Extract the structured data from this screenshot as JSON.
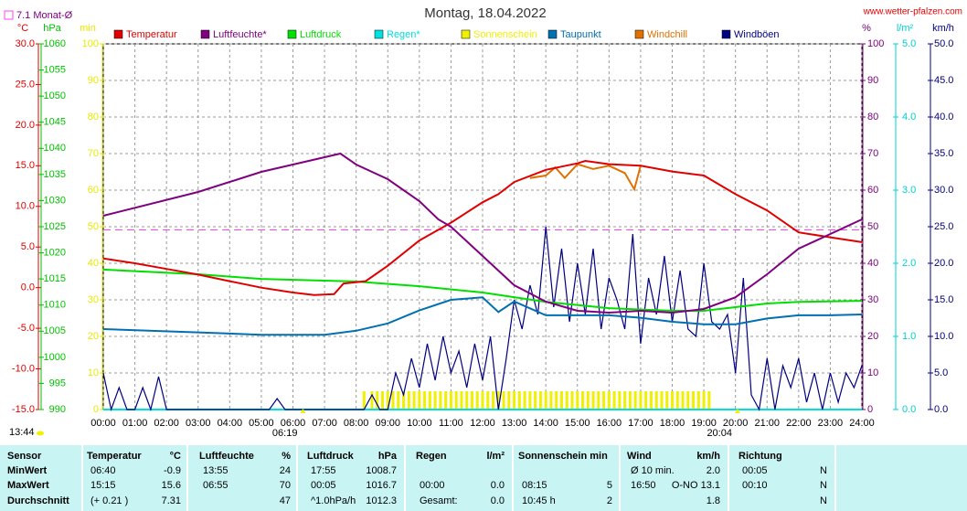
{
  "chart_data": {
    "type": "line",
    "title": "Montag, 18.04.2022",
    "site": "www.wetter-pfalzen.com",
    "updated": "13:44",
    "xlim": [
      0,
      1440
    ],
    "xticks": [
      {
        "value": 0,
        "label": "00:00"
      },
      {
        "value": 60,
        "label": "01:00"
      },
      {
        "value": 120,
        "label": "02:00"
      },
      {
        "value": 180,
        "label": "03:00"
      },
      {
        "value": 240,
        "label": "04:00"
      },
      {
        "value": 300,
        "label": "05:00"
      },
      {
        "value": 360,
        "label": "06:00"
      },
      {
        "value": 420,
        "label": "07:00"
      },
      {
        "value": 480,
        "label": "08:00"
      },
      {
        "value": 540,
        "label": "09:00"
      },
      {
        "value": 600,
        "label": "10:00"
      },
      {
        "value": 660,
        "label": "11:00"
      },
      {
        "value": 720,
        "label": "12:00"
      },
      {
        "value": 780,
        "label": "13:00"
      },
      {
        "value": 840,
        "label": "14:00"
      },
      {
        "value": 900,
        "label": "15:00"
      },
      {
        "value": 960,
        "label": "16:00"
      },
      {
        "value": 1020,
        "label": "17:00"
      },
      {
        "value": 1080,
        "label": "18:00"
      },
      {
        "value": 1140,
        "label": "19:00"
      },
      {
        "value": 1200,
        "label": "20:00"
      },
      {
        "value": 1260,
        "label": "21:00"
      },
      {
        "value": 1320,
        "label": "22:00"
      },
      {
        "value": 1380,
        "label": "23:00"
      },
      {
        "value": 1440,
        "label": "24:00"
      }
    ],
    "grid": true,
    "axes": {
      "temp": {
        "unit": "°C",
        "color": "#e00000",
        "lim": [
          -15,
          30
        ],
        "ticks": [
          {
            "value": -15,
            "label": "-15.0"
          },
          {
            "value": -10,
            "label": "-10.0"
          },
          {
            "value": -5,
            "label": "-5.0"
          },
          {
            "value": 0,
            "label": "0.0"
          },
          {
            "value": 5,
            "label": "5.0"
          },
          {
            "value": 10,
            "label": "10.0"
          },
          {
            "value": 15,
            "label": "15.0"
          },
          {
            "value": 20,
            "label": "20.0"
          },
          {
            "value": 25,
            "label": "25.0"
          },
          {
            "value": 30,
            "label": "30.0"
          }
        ]
      },
      "press": {
        "unit": "hPa",
        "color": "#00c000",
        "lim": [
          990,
          1060
        ],
        "ticks": [
          990,
          995,
          1000,
          1005,
          1010,
          1015,
          1020,
          1025,
          1030,
          1035,
          1040,
          1045,
          1050,
          1055,
          1060
        ]
      },
      "min": {
        "unit": "min",
        "color": "#e8e800",
        "lim": [
          0,
          100
        ],
        "ticks": [
          0,
          10,
          20,
          30,
          40,
          50,
          60,
          70,
          80,
          90,
          100
        ]
      },
      "pct": {
        "unit": "%",
        "color": "#800080",
        "lim": [
          0,
          100
        ],
        "ticks": [
          0,
          10,
          20,
          30,
          40,
          50,
          60,
          70,
          80,
          90,
          100
        ]
      },
      "rain": {
        "unit": "l/m²",
        "color": "#00d0d0",
        "lim": [
          0,
          5
        ],
        "ticks": [
          {
            "value": 0,
            "label": "0.0"
          },
          {
            "value": 1,
            "label": "1.0"
          },
          {
            "value": 2,
            "label": "2.0"
          },
          {
            "value": 3,
            "label": "3.0"
          },
          {
            "value": 4,
            "label": "4.0"
          },
          {
            "value": 5,
            "label": "5.0"
          }
        ]
      },
      "kmh": {
        "unit": "km/h",
        "color": "#000080",
        "lim": [
          0,
          50
        ],
        "ticks": [
          {
            "value": 0,
            "label": "0.0"
          },
          {
            "value": 5,
            "label": "5.0"
          },
          {
            "value": 10,
            "label": "10.0"
          },
          {
            "value": 15,
            "label": "15.0"
          },
          {
            "value": 20,
            "label": "20.0"
          },
          {
            "value": 25,
            "label": "25.0"
          },
          {
            "value": 30,
            "label": "30.0"
          },
          {
            "value": 35,
            "label": "35.0"
          },
          {
            "value": 40,
            "label": "40.0"
          },
          {
            "value": 45,
            "label": "45.0"
          },
          {
            "value": 50,
            "label": "50.0"
          }
        ]
      }
    },
    "average": {
      "label": "7.1 Monat-Ø",
      "value": 7.1,
      "axis": "temp",
      "color": "#ff40ff"
    },
    "markers": [
      {
        "x": 379,
        "label": "06:19"
      },
      {
        "x": 1204,
        "label": "20:04"
      }
    ],
    "series": [
      {
        "name": "Temperatur",
        "color": "#e00000",
        "axis": "temp",
        "style": "line",
        "x": [
          0,
          60,
          120,
          180,
          240,
          300,
          360,
          400,
          438,
          456,
          498,
          540,
          600,
          660,
          720,
          750,
          780,
          840,
          900,
          915,
          960,
          1020,
          1080,
          1140,
          1200,
          1260,
          1320,
          1380,
          1440
        ],
        "values": [
          3.6,
          3.0,
          2.3,
          1.6,
          0.8,
          0.0,
          -0.6,
          -0.9,
          -0.8,
          0.5,
          0.8,
          2.7,
          5.8,
          8.0,
          10.5,
          11.5,
          13.0,
          14.5,
          15.3,
          15.6,
          15.2,
          15.0,
          14.3,
          13.8,
          11.5,
          9.5,
          6.8,
          6.2,
          5.6
        ]
      },
      {
        "name": "Luftfeuchte*",
        "color": "#800080",
        "axis": "pct",
        "style": "line",
        "x": [
          0,
          180,
          300,
          360,
          420,
          450,
          480,
          540,
          600,
          636,
          660,
          720,
          750,
          780,
          840,
          900,
          960,
          1020,
          1080,
          1140,
          1200,
          1260,
          1320,
          1380,
          1440
        ],
        "values": [
          53,
          59.5,
          65,
          67,
          69,
          70,
          67,
          63,
          57,
          52,
          50,
          42,
          38,
          34,
          29.5,
          27,
          26.5,
          27,
          26.5,
          27.5,
          30.7,
          37,
          44,
          48,
          52
        ]
      },
      {
        "name": "Luftdruck",
        "color": "#00e000",
        "axis": "press",
        "style": "line",
        "x": [
          0,
          180,
          300,
          480,
          600,
          720,
          840,
          960,
          1080,
          1140,
          1200,
          1260,
          1320,
          1440
        ],
        "values": [
          1016.8,
          1015.9,
          1015,
          1014.5,
          1013.6,
          1012.4,
          1010.6,
          1009.4,
          1008.9,
          1008.9,
          1009.6,
          1010.3,
          1010.6,
          1010.8
        ]
      },
      {
        "name": "Regen*",
        "color": "#00e0e0",
        "axis": "rain",
        "style": "line",
        "x": [
          0,
          1440
        ],
        "values": [
          0,
          0
        ]
      },
      {
        "name": "Sonnenschein",
        "color": "#f0f000",
        "axis": "min",
        "style": "bar",
        "x": [
          495,
          510,
          520,
          530,
          540,
          550,
          560,
          570,
          580,
          590,
          600,
          610,
          620,
          630,
          640,
          650,
          660,
          670,
          680,
          690,
          700,
          710,
          720,
          730,
          740,
          750,
          760,
          770,
          780,
          790,
          800,
          810,
          820,
          830,
          840,
          850,
          860,
          870,
          880,
          890,
          900,
          910,
          920,
          930,
          940,
          950,
          960,
          970,
          980,
          990,
          1000,
          1010,
          1020,
          1030,
          1040,
          1050,
          1060,
          1070,
          1080,
          1090,
          1100,
          1110,
          1120,
          1130,
          1140,
          1150
        ],
        "values": [
          5,
          5,
          5,
          5,
          5,
          5,
          5,
          5,
          5,
          5,
          5,
          5,
          5,
          5,
          5,
          5,
          5,
          5,
          5,
          5,
          5,
          5,
          5,
          5,
          5,
          5,
          5,
          5,
          5,
          5,
          5,
          5,
          5,
          5,
          5,
          5,
          5,
          5,
          5,
          5,
          5,
          5,
          5,
          5,
          5,
          5,
          5,
          5,
          5,
          5,
          5,
          5,
          5,
          5,
          5,
          5,
          5,
          5,
          5,
          5,
          5,
          5,
          5,
          5,
          5,
          5
        ]
      },
      {
        "name": "Taupunkt",
        "color": "#0070b0",
        "axis": "temp",
        "style": "line",
        "x": [
          0,
          180,
          300,
          420,
          480,
          540,
          600,
          660,
          720,
          750,
          780,
          840,
          900,
          960,
          1020,
          1080,
          1140,
          1200,
          1260,
          1320,
          1380,
          1440
        ],
        "values": [
          -5.1,
          -5.5,
          -5.8,
          -5.8,
          -5.3,
          -4.4,
          -2.8,
          -1.5,
          -1.2,
          -3.0,
          -1.7,
          -3.4,
          -3.4,
          -3.4,
          -3.7,
          -4.2,
          -4.5,
          -4.5,
          -3.8,
          -3.4,
          -3.4,
          -3.3
        ]
      },
      {
        "name": "Windchill",
        "color": "#e07000",
        "axis": "temp",
        "style": "line",
        "x": [
          810,
          840,
          858,
          876,
          900,
          930,
          960,
          990,
          1008,
          1020
        ],
        "values": [
          13.5,
          13.8,
          14.8,
          13.5,
          15.2,
          14.6,
          15.0,
          14.1,
          12.1,
          15.0
        ]
      },
      {
        "name": "Windböen",
        "color": "#000080",
        "axis": "kmh",
        "style": "line",
        "x": [
          0,
          15,
          30,
          45,
          60,
          75,
          90,
          105,
          120,
          135,
          150,
          165,
          180,
          195,
          210,
          225,
          240,
          255,
          270,
          285,
          300,
          315,
          330,
          345,
          360,
          375,
          390,
          405,
          420,
          435,
          450,
          465,
          480,
          495,
          510,
          525,
          540,
          555,
          570,
          585,
          600,
          615,
          630,
          645,
          660,
          675,
          690,
          705,
          720,
          735,
          750,
          765,
          780,
          795,
          810,
          825,
          840,
          855,
          870,
          885,
          900,
          915,
          930,
          945,
          960,
          975,
          990,
          1005,
          1020,
          1035,
          1050,
          1065,
          1080,
          1095,
          1110,
          1125,
          1140,
          1155,
          1170,
          1185,
          1200,
          1215,
          1230,
          1245,
          1260,
          1275,
          1290,
          1305,
          1320,
          1335,
          1350,
          1365,
          1380,
          1395,
          1410,
          1425,
          1440
        ],
        "values": [
          5,
          0,
          3,
          0,
          0,
          3,
          0,
          4.5,
          0,
          0,
          0,
          0,
          0,
          0,
          0,
          0,
          0,
          0,
          0,
          0,
          0,
          0,
          1.5,
          0,
          0,
          0,
          0,
          0,
          0,
          0,
          0,
          0,
          0,
          0,
          2,
          0,
          0,
          5,
          2,
          7,
          3,
          9,
          4,
          10,
          5,
          8,
          3,
          9,
          4,
          10,
          0,
          7,
          15,
          11,
          17,
          13,
          25,
          14,
          22,
          12,
          20,
          13,
          22,
          11,
          18,
          15,
          11,
          24,
          9,
          18,
          13,
          21,
          12,
          19,
          11,
          10,
          20,
          12,
          11,
          13,
          5,
          18,
          2,
          0,
          7,
          0,
          6,
          3,
          7,
          1,
          5,
          0,
          5,
          1,
          5,
          3,
          6
        ]
      }
    ]
  },
  "table": {
    "header": {
      "sensor": "Sensor",
      "temp": [
        "Temperatur",
        "°C"
      ],
      "hum": [
        "Luftfeuchte",
        "%"
      ],
      "press": [
        "Luftdruck",
        "hPa"
      ],
      "rain": [
        "Regen",
        "l/m²"
      ],
      "sun": [
        "Sonnenschein min"
      ],
      "wind": [
        "Wind",
        "km/h"
      ],
      "dir": [
        "Richtung"
      ]
    },
    "rows": [
      {
        "label": "MinWert",
        "temp": {
          "t": "06:40",
          "v": "-0.9"
        },
        "hum": {
          "t": "13:55",
          "v": "24"
        },
        "press": {
          "t": "17:55",
          "v": "1008.7"
        },
        "wind": {
          "t": "Ø 10 min.",
          "v": "2.0"
        },
        "dir": {
          "t": "00:05",
          "v": "N"
        }
      },
      {
        "label": "MaxWert",
        "temp": {
          "t": "15:15",
          "v": "15.6"
        },
        "hum": {
          "t": "06:55",
          "v": "70"
        },
        "press": {
          "t": "00:05",
          "v": "1016.7"
        },
        "rain": {
          "t": "00:00",
          "v": "0.0"
        },
        "sun": {
          "t": "08:15",
          "v": "5"
        },
        "wind": {
          "t": "16:50",
          "v": "O-NO 13.1"
        },
        "dir": {
          "t": "00:10",
          "v": "N"
        }
      },
      {
        "label": "Durchschnitt",
        "temp": {
          "t": "(+ 0.21 )",
          "v": "7.31"
        },
        "hum": {
          "v": "47"
        },
        "press": {
          "t": "^1.0hPa/h",
          "v": "1012.3"
        },
        "rain": {
          "t": "Gesamt:",
          "v": "0.0"
        },
        "sun": {
          "t": "10:45 h",
          "v": "2"
        },
        "wind": {
          "v": "1.8"
        },
        "dir": {
          "v": "N"
        }
      }
    ]
  }
}
